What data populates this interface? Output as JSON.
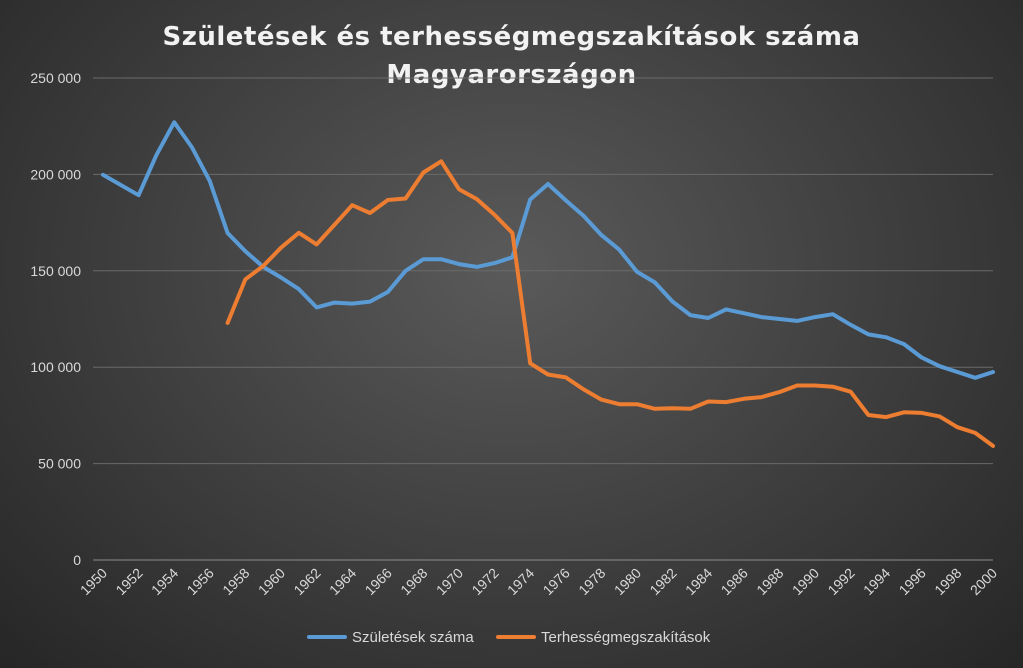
{
  "chart_data": {
    "type": "line",
    "title": [
      "Születések és terhességmegszakítások száma",
      "Magyarországon"
    ],
    "xlabel": "",
    "ylabel": "",
    "ylim": [
      0,
      250000
    ],
    "yticks": [
      0,
      50000,
      100000,
      150000,
      200000,
      250000
    ],
    "ytick_labels": [
      "0",
      "50 000",
      "100 000",
      "150 000",
      "200 000",
      "250 000"
    ],
    "xlim": [
      1950,
      2000
    ],
    "xticks": [
      1950,
      1952,
      1954,
      1956,
      1958,
      1960,
      1962,
      1964,
      1966,
      1968,
      1970,
      1972,
      1974,
      1976,
      1978,
      1980,
      1982,
      1984,
      1986,
      1988,
      1990,
      1992,
      1994,
      1996,
      1998,
      2000
    ],
    "grid": "horizontal",
    "legend_position": "bottom",
    "series": [
      {
        "name": "Születések száma",
        "color": "#5b9bd5",
        "x": [
          1950,
          1951,
          1952,
          1953,
          1954,
          1955,
          1956,
          1957,
          1958,
          1959,
          1960,
          1961,
          1962,
          1963,
          1964,
          1965,
          1966,
          1967,
          1968,
          1969,
          1970,
          1971,
          1972,
          1973,
          1974,
          1975,
          1976,
          1977,
          1978,
          1979,
          1980,
          1981,
          1982,
          1983,
          1984,
          1985,
          1986,
          1987,
          1988,
          1989,
          1990,
          1991,
          1992,
          1993,
          1994,
          1995,
          1996,
          1997,
          1998,
          1999,
          2000
        ],
        "values": [
          199800,
          194500,
          189200,
          210000,
          227000,
          214000,
          196500,
          169600,
          160100,
          152000,
          146500,
          140500,
          131000,
          133500,
          133000,
          134000,
          139000,
          150000,
          156000,
          156000,
          153500,
          152000,
          154000,
          157000,
          187000,
          195000,
          186500,
          178500,
          168500,
          161000,
          149500,
          144000,
          134000,
          127000,
          125500,
          130000,
          128000,
          126000,
          125000,
          124000,
          126000,
          127500,
          122000,
          117000,
          115500,
          112000,
          105000,
          100500,
          97500,
          94500,
          97500
        ]
      },
      {
        "name": "Terhességmegszakítások",
        "color": "#ed7d31",
        "x": [
          1957,
          1958,
          1959,
          1960,
          1961,
          1962,
          1963,
          1964,
          1965,
          1966,
          1967,
          1968,
          1969,
          1970,
          1971,
          1972,
          1973,
          1974,
          1975,
          1976,
          1977,
          1978,
          1979,
          1980,
          1981,
          1982,
          1983,
          1984,
          1985,
          1986,
          1987,
          1988,
          1989,
          1990,
          1991,
          1992,
          1993,
          1994,
          1995,
          1996,
          1997,
          1998,
          1999,
          2000
        ],
        "values": [
          123000,
          145600,
          152500,
          162000,
          169700,
          163700,
          173800,
          184000,
          180000,
          186700,
          187500,
          201000,
          206800,
          192300,
          187200,
          179000,
          169600,
          102000,
          96200,
          94700,
          88500,
          83200,
          80800,
          80800,
          78400,
          78700,
          78400,
          82200,
          81900,
          83600,
          84500,
          87100,
          90500,
          90500,
          89900,
          87300,
          75200,
          74100,
          76600,
          76300,
          74500,
          68900,
          65900,
          59200
        ]
      }
    ]
  }
}
